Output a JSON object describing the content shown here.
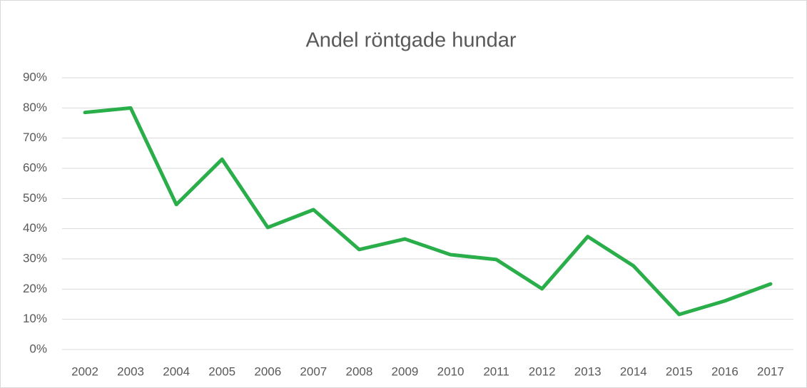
{
  "chart_data": {
    "type": "line",
    "title": "Andel röntgade hundar",
    "categories": [
      "2002",
      "2003",
      "2004",
      "2005",
      "2006",
      "2007",
      "2008",
      "2009",
      "2010",
      "2011",
      "2012",
      "2013",
      "2014",
      "2015",
      "2016",
      "2017"
    ],
    "series": [
      {
        "name": "Andel röntgade hundar",
        "color": "#2aae4a",
        "values": [
          78.5,
          80,
          48,
          63,
          40.4,
          46.3,
          33.1,
          36.6,
          31.4,
          29.8,
          20.1,
          37.4,
          27.7,
          11.6,
          16.1,
          21.7
        ]
      }
    ],
    "ylim": [
      0,
      90
    ],
    "yticks": [
      {
        "value": 0,
        "label": "0%"
      },
      {
        "value": 10,
        "label": "10%"
      },
      {
        "value": 20,
        "label": "20%"
      },
      {
        "value": 30,
        "label": "30%"
      },
      {
        "value": 40,
        "label": "40%"
      },
      {
        "value": 50,
        "label": "50%"
      },
      {
        "value": 60,
        "label": "60%"
      },
      {
        "value": 70,
        "label": "70%"
      },
      {
        "value": 80,
        "label": "80%"
      },
      {
        "value": 90,
        "label": "90%"
      }
    ],
    "grid": true
  }
}
